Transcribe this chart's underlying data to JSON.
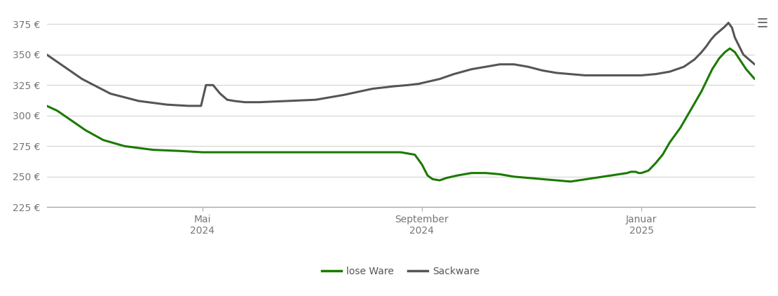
{
  "background_color": "#ffffff",
  "plot_bg_color": "#ffffff",
  "ylim": [
    225,
    385
  ],
  "yticks": [
    225,
    250,
    275,
    300,
    325,
    350,
    375
  ],
  "grid_color": "#d0d0d0",
  "xtick_labels": [
    "Mai\n2024",
    "September\n2024",
    "Januar\n2025"
  ],
  "xtick_positions": [
    0.22,
    0.53,
    0.84
  ],
  "lose_ware_color": "#1a7a00",
  "sackware_color": "#555555",
  "line_width": 2.2,
  "legend_labels": [
    "lose Ware",
    "Sackware"
  ],
  "lose_ware": {
    "x": [
      0.0,
      0.015,
      0.03,
      0.055,
      0.08,
      0.11,
      0.15,
      0.19,
      0.22,
      0.26,
      0.3,
      0.35,
      0.4,
      0.45,
      0.5,
      0.52,
      0.53,
      0.538,
      0.545,
      0.555,
      0.565,
      0.58,
      0.6,
      0.62,
      0.64,
      0.66,
      0.68,
      0.7,
      0.72,
      0.74,
      0.82,
      0.825,
      0.828,
      0.832,
      0.836,
      0.84,
      0.85,
      0.86,
      0.87,
      0.88,
      0.895,
      0.91,
      0.925,
      0.94,
      0.95,
      0.958,
      0.965,
      0.972,
      0.98,
      0.988,
      1.0
    ],
    "y": [
      308,
      304,
      298,
      288,
      280,
      275,
      272,
      271,
      270,
      270,
      270,
      270,
      270,
      270,
      270,
      268,
      260,
      251,
      248,
      247,
      249,
      251,
      253,
      253,
      252,
      250,
      249,
      248,
      247,
      246,
      253,
      254,
      254,
      254,
      253,
      253,
      255,
      261,
      268,
      278,
      290,
      305,
      320,
      338,
      347,
      352,
      355,
      352,
      345,
      338,
      330
    ]
  },
  "sackware": {
    "x": [
      0.0,
      0.02,
      0.05,
      0.09,
      0.13,
      0.17,
      0.2,
      0.21,
      0.214,
      0.218,
      0.225,
      0.235,
      0.245,
      0.255,
      0.265,
      0.28,
      0.3,
      0.34,
      0.38,
      0.42,
      0.46,
      0.49,
      0.51,
      0.525,
      0.54,
      0.555,
      0.575,
      0.6,
      0.62,
      0.64,
      0.66,
      0.68,
      0.7,
      0.72,
      0.74,
      0.76,
      0.78,
      0.8,
      0.82,
      0.84,
      0.86,
      0.88,
      0.9,
      0.915,
      0.925,
      0.932,
      0.938,
      0.944,
      0.95,
      0.958,
      0.963,
      0.968,
      0.972,
      0.978,
      0.984,
      1.0
    ],
    "y": [
      350,
      342,
      330,
      318,
      312,
      309,
      308,
      308,
      308,
      308,
      325,
      325,
      318,
      313,
      312,
      311,
      311,
      312,
      313,
      317,
      322,
      324,
      325,
      326,
      328,
      330,
      334,
      338,
      340,
      342,
      342,
      340,
      337,
      335,
      334,
      333,
      333,
      333,
      333,
      333,
      334,
      336,
      340,
      346,
      352,
      357,
      362,
      366,
      369,
      373,
      376,
      372,
      364,
      357,
      350,
      342
    ]
  }
}
